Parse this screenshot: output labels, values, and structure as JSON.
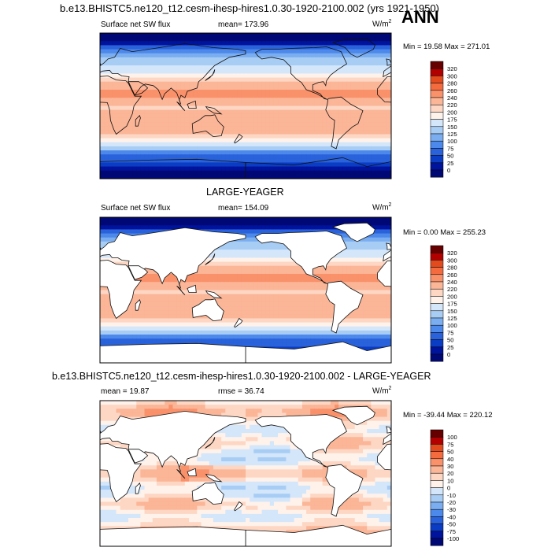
{
  "header": {
    "title": "b.e13.BHISTC5.ne120_t12.cesm-ihesp-hires1.0.30-1920-2100.002 (yrs 1921-1950)",
    "season": "ANN"
  },
  "chart_data": [
    {
      "type": "heatmap",
      "name": "model",
      "left_label": "Surface net SW flux",
      "center_label": "mean= 173.96",
      "units": "W/m",
      "units_sup": "2",
      "mean": 173.96,
      "min": 19.58,
      "max": 271.01,
      "minmax_text": "Min =  19.58 Max = 271.01",
      "colorbar_ticks": [
        "320",
        "300",
        "280",
        "260",
        "240",
        "220",
        "200",
        "175",
        "150",
        "125",
        "100",
        "75",
        "50",
        "25",
        "0"
      ],
      "colors": [
        "#660000",
        "#b20000",
        "#e34b1f",
        "#f36b3e",
        "#f9916a",
        "#fbb597",
        "#fdd7c4",
        "#fff2eb",
        "#d4e6fa",
        "#a8cdf5",
        "#7aaef0",
        "#4d88eb",
        "#2962db",
        "#0a3cc4",
        "#00139c",
        "#000875"
      ]
    },
    {
      "type": "heatmap",
      "name": "obs",
      "top_title": "LARGE-YEAGER",
      "left_label": "Surface net SW flux",
      "center_label": "mean= 154.09",
      "units": "W/m",
      "units_sup": "2",
      "mean": 154.09,
      "min": 0.0,
      "max": 255.23,
      "minmax_text": "Min =   0.00 Max = 255.23",
      "colorbar_ticks": [
        "320",
        "300",
        "280",
        "260",
        "240",
        "220",
        "200",
        "175",
        "150",
        "125",
        "100",
        "75",
        "50",
        "25",
        "0"
      ],
      "colors": [
        "#660000",
        "#b20000",
        "#e34b1f",
        "#f36b3e",
        "#f9916a",
        "#fbb597",
        "#fdd7c4",
        "#fff2eb",
        "#d4e6fa",
        "#a8cdf5",
        "#7aaef0",
        "#4d88eb",
        "#2962db",
        "#0a3cc4",
        "#00139c",
        "#000875"
      ]
    },
    {
      "type": "heatmap",
      "name": "diff",
      "top_title": "b.e13.BHISTC5.ne120_t12.cesm-ihesp-hires1.0.30-1920-2100.002 - LARGE-YEAGER",
      "left_label": "mean =  19.87",
      "center_label": "rmse =  36.74",
      "units": "W/m",
      "units_sup": "2",
      "mean": 19.87,
      "rmse": 36.74,
      "min": -39.44,
      "max": 220.12,
      "minmax_text": "Min = -39.44 Max = 220.12",
      "colorbar_ticks": [
        "100",
        "75",
        "50",
        "40",
        "30",
        "20",
        "10",
        "0",
        "-10",
        "-20",
        "-30",
        "-40",
        "-50",
        "-75",
        "-100"
      ],
      "colors": [
        "#660000",
        "#b20000",
        "#e34b1f",
        "#f36b3e",
        "#f9916a",
        "#fbb597",
        "#fdd7c4",
        "#fff2eb",
        "#d4e6fa",
        "#a8cdf5",
        "#7aaef0",
        "#4d88eb",
        "#2962db",
        "#0a3cc4",
        "#00139c",
        "#000875"
      ]
    }
  ]
}
